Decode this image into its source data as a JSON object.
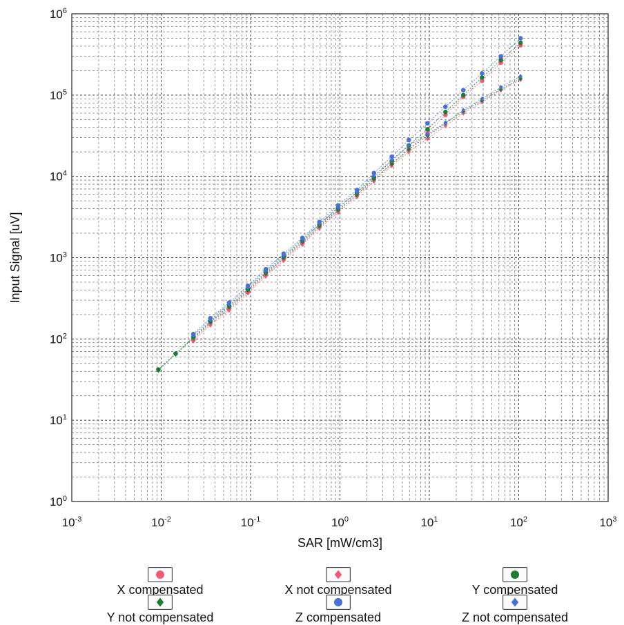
{
  "chart_data": {
    "type": "scatter",
    "xlabel": "SAR [mW/cm3]",
    "ylabel": "Input Signal [uV]",
    "xscale": "log",
    "yscale": "log",
    "xlim": [
      0.001,
      1000
    ],
    "ylim": [
      1,
      1000000
    ],
    "x_ticks": [
      {
        "base": "10",
        "exp": "-3"
      },
      {
        "base": "10",
        "exp": "-2"
      },
      {
        "base": "10",
        "exp": "-1"
      },
      {
        "base": "10",
        "exp": "0"
      },
      {
        "base": "10",
        "exp": "1"
      },
      {
        "base": "10",
        "exp": "2"
      },
      {
        "base": "10",
        "exp": "3"
      }
    ],
    "y_ticks": [
      {
        "base": "10",
        "exp": "0"
      },
      {
        "base": "10",
        "exp": "1"
      },
      {
        "base": "10",
        "exp": "2"
      },
      {
        "base": "10",
        "exp": "3"
      },
      {
        "base": "10",
        "exp": "4"
      },
      {
        "base": "10",
        "exp": "5"
      },
      {
        "base": "10",
        "exp": "6"
      }
    ],
    "grid": true,
    "legend_position": "bottom",
    "series": [
      {
        "name": "X compensated",
        "color": "#f05a78",
        "marker": "circle",
        "x": [
          0.0229,
          0.0355,
          0.0575,
          0.0933,
          0.1479,
          0.2344,
          0.3802,
          0.5888,
          0.955,
          1.549,
          2.399,
          3.802,
          5.888,
          9.55,
          15.14,
          23.99,
          38.9,
          63.1,
          104.7
        ],
        "y": [
          98,
          155,
          235,
          380,
          615,
          955,
          1500,
          2400,
          3800,
          5900,
          9200,
          14500,
          21500,
          34000,
          57000,
          95000,
          150000,
          250000,
          410000
        ]
      },
      {
        "name": "X not compensated",
        "color": "#f05a78",
        "marker": "diamond",
        "x": [
          0.0229,
          0.0355,
          0.0575,
          0.0933,
          0.1479,
          0.2344,
          0.3802,
          0.5888,
          0.955,
          1.549,
          2.399,
          3.802,
          5.888,
          9.55,
          15.14,
          23.99,
          38.9,
          63.1,
          104.7
        ],
        "y": [
          94,
          148,
          225,
          365,
          590,
          920,
          1450,
          2300,
          3600,
          5600,
          8700,
          13500,
          20000,
          29000,
          42000,
          60000,
          82000,
          115000,
          155000
        ]
      },
      {
        "name": "Y compensated",
        "color": "#1e7a35",
        "marker": "circle",
        "x": [
          0.0093,
          0.0145,
          0.0229,
          0.0355,
          0.0575,
          0.0933,
          0.1479,
          0.2344,
          0.3802,
          0.5888,
          0.955,
          1.549,
          2.399,
          3.802,
          5.888,
          9.55,
          15.14,
          23.99,
          38.9,
          63.1,
          104.7
        ],
        "y": [
          42,
          66,
          105,
          165,
          255,
          410,
          660,
          1030,
          1620,
          2550,
          4050,
          6300,
          9800,
          15500,
          24000,
          38000,
          62000,
          100000,
          165000,
          270000,
          440000
        ]
      },
      {
        "name": "Y not compensated",
        "color": "#1e7a35",
        "marker": "diamond",
        "x": [
          0.0093,
          0.0145,
          0.0229,
          0.0355,
          0.0575,
          0.0933,
          0.1479,
          0.2344,
          0.3802,
          0.5888,
          0.955,
          1.549,
          2.399,
          3.802,
          5.888,
          9.55,
          15.14,
          23.99,
          38.9,
          63.1,
          104.7
        ],
        "y": [
          41,
          65,
          102,
          160,
          245,
          395,
          635,
          990,
          1560,
          2450,
          3850,
          5950,
          9200,
          14200,
          21500,
          31500,
          45000,
          63000,
          86000,
          118000,
          160000
        ]
      },
      {
        "name": "Z compensated",
        "color": "#4a70d8",
        "marker": "circle",
        "x": [
          0.0229,
          0.0355,
          0.0575,
          0.0933,
          0.1479,
          0.2344,
          0.3802,
          0.5888,
          0.955,
          1.549,
          2.399,
          3.802,
          5.888,
          9.55,
          15.14,
          23.99,
          38.9,
          63.1,
          104.7
        ],
        "y": [
          115,
          180,
          280,
          450,
          720,
          1120,
          1750,
          2750,
          4400,
          6800,
          11000,
          17500,
          28000,
          45000,
          72000,
          115000,
          185000,
          300000,
          500000
        ]
      },
      {
        "name": "Z not compensated",
        "color": "#4a70d8",
        "marker": "diamond",
        "x": [
          0.0229,
          0.0355,
          0.0575,
          0.0933,
          0.1479,
          0.2344,
          0.3802,
          0.5888,
          0.955,
          1.549,
          2.399,
          3.802,
          5.888,
          9.55,
          15.14,
          23.99,
          38.9,
          63.1,
          104.7
        ],
        "y": [
          110,
          172,
          268,
          430,
          690,
          1070,
          1670,
          2620,
          4150,
          6400,
          10200,
          16000,
          24000,
          33000,
          46000,
          65000,
          90000,
          125000,
          170000
        ]
      }
    ]
  },
  "legend": [
    {
      "label": "X compensated",
      "color": "#f05a78",
      "marker": "circle"
    },
    {
      "label": "X not compensated",
      "color": "#f05a78",
      "marker": "diamond"
    },
    {
      "label": "Y compensated",
      "color": "#1e7a35",
      "marker": "circle"
    },
    {
      "label": "Y not compensated",
      "color": "#1e7a35",
      "marker": "diamond"
    },
    {
      "label": "Z compensated",
      "color": "#4a70d8",
      "marker": "circle"
    },
    {
      "label": "Z not compensated",
      "color": "#4a70d8",
      "marker": "diamond"
    }
  ]
}
